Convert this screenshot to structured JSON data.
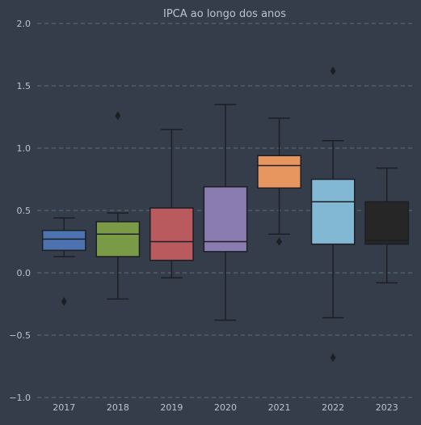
{
  "chart_data": {
    "type": "box",
    "title": "IPCA ao longo dos anos",
    "xlabel": "",
    "ylabel": "",
    "ylim": [
      -1.0,
      2.0
    ],
    "yticks": [
      -1.0,
      -0.5,
      0.0,
      0.5,
      1.0,
      1.5,
      2.0
    ],
    "ytick_labels": [
      "−1.0",
      "−0.5",
      "0.0",
      "0.5",
      "1.0",
      "1.5",
      "2.0"
    ],
    "grid": "horizontal-dashed",
    "categories": [
      "2017",
      "2018",
      "2019",
      "2020",
      "2021",
      "2022",
      "2023"
    ],
    "boxes": [
      {
        "category": "2017",
        "whisker_low": 0.13,
        "q1": 0.18,
        "median": 0.27,
        "q3": 0.34,
        "whisker_high": 0.44,
        "outliers": [
          -0.23
        ],
        "color": "#4c72b0"
      },
      {
        "category": "2018",
        "whisker_low": -0.21,
        "q1": 0.13,
        "median": 0.31,
        "q3": 0.41,
        "whisker_high": 0.48,
        "outliers": [
          1.26
        ],
        "color": "#7a9a48"
      },
      {
        "category": "2019",
        "whisker_low": -0.04,
        "q1": 0.1,
        "median": 0.25,
        "q3": 0.52,
        "whisker_high": 1.15,
        "outliers": [],
        "color": "#b85a5e"
      },
      {
        "category": "2020",
        "whisker_low": -0.38,
        "q1": 0.17,
        "median": 0.25,
        "q3": 0.69,
        "whisker_high": 1.35,
        "outliers": [],
        "color": "#8a7cb0"
      },
      {
        "category": "2021",
        "whisker_low": 0.31,
        "q1": 0.68,
        "median": 0.86,
        "q3": 0.94,
        "whisker_high": 1.24,
        "outliers": [
          0.25
        ],
        "color": "#e8965f"
      },
      {
        "category": "2022",
        "whisker_low": -0.36,
        "q1": 0.23,
        "median": 0.57,
        "q3": 0.75,
        "whisker_high": 1.06,
        "outliers": [
          1.62,
          -0.68
        ],
        "color": "#82b8d4"
      },
      {
        "category": "2023",
        "whisker_low": -0.08,
        "q1": 0.23,
        "median": 0.26,
        "q3": 0.57,
        "whisker_high": 0.84,
        "outliers": [],
        "color": "#262626"
      }
    ],
    "colors": {
      "background": "#353d4a",
      "grid": "#5b6e78",
      "text": "#b9c4ce",
      "edge": "#1c1f24"
    }
  }
}
